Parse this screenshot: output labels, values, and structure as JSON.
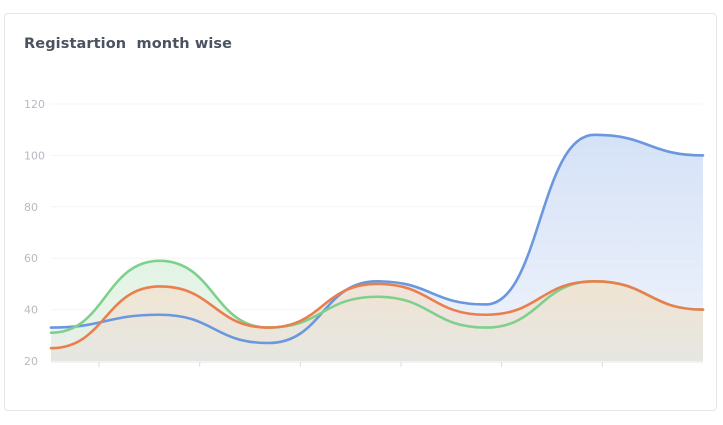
{
  "card": {
    "title": "Registartion  month wise"
  },
  "chart_data": {
    "type": "area",
    "title": "Registartion  month wise",
    "xlabel": "",
    "ylabel": "",
    "ylim": [
      20,
      120
    ],
    "yticks": [
      20,
      40,
      60,
      80,
      100,
      120
    ],
    "x": [
      0,
      1,
      2,
      3,
      4,
      5,
      6
    ],
    "grid": true,
    "legend": "none",
    "series": [
      {
        "color": "#6a97dd",
        "fill": "#c4d5f3",
        "values": [
          33,
          38,
          27,
          51,
          42,
          108,
          100
        ]
      },
      {
        "color": "#7fd08c",
        "fill": "#dff2e2",
        "values": [
          31,
          59,
          33,
          45,
          33,
          51,
          40
        ]
      },
      {
        "color": "#ea7f4e",
        "fill": "#f6e1cf",
        "values": [
          25,
          49,
          33,
          50,
          38,
          51,
          40
        ]
      }
    ]
  }
}
